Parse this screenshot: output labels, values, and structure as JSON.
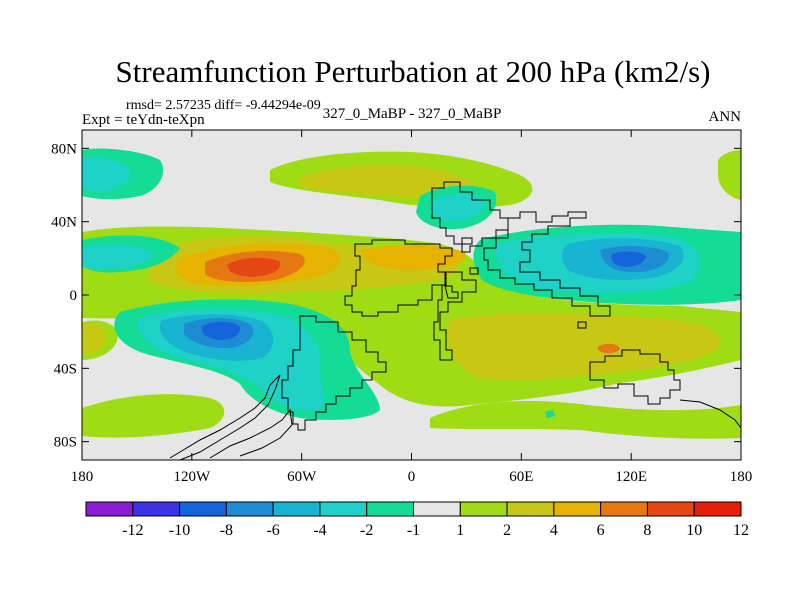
{
  "chart_data": {
    "type": "heatmap",
    "title": "Streamfunction Perturbation at 200 hPa (km2/s)",
    "stats_line": "rmsd= 2.57235 diff= -9.44294e-09",
    "left_label": "Expt = teYdn-teXpn",
    "center_label": "327_0_MaBP - 327_0_MaBP",
    "right_label": "ANN",
    "xlim": [
      -180,
      180
    ],
    "ylim": [
      -90,
      90
    ],
    "x_ticks": [
      {
        "value": -180,
        "label": "180"
      },
      {
        "value": -120,
        "label": "120W"
      },
      {
        "value": -60,
        "label": "60W"
      },
      {
        "value": 0,
        "label": "0"
      },
      {
        "value": 60,
        "label": "60E"
      },
      {
        "value": 120,
        "label": "120E"
      },
      {
        "value": 180,
        "label": "180"
      }
    ],
    "y_ticks": [
      {
        "value": 80,
        "label": "80N"
      },
      {
        "value": 40,
        "label": "40N"
      },
      {
        "value": 0,
        "label": "0"
      },
      {
        "value": -40,
        "label": "40S"
      },
      {
        "value": -80,
        "label": "80S"
      }
    ],
    "colorbar": {
      "levels": [
        "-12",
        "-10",
        "-8",
        "-6",
        "-4",
        "-2",
        "-1",
        "1",
        "2",
        "4",
        "6",
        "8",
        "10",
        "12"
      ],
      "colors": [
        "#8c1ed2",
        "#3c32e6",
        "#1464dc",
        "#1e8cd2",
        "#18b4d2",
        "#1ed2c8",
        "#12dc96",
        "#e6e6e6",
        "#a0dc14",
        "#c8c814",
        "#e6b400",
        "#e67814",
        "#e64614",
        "#e61e0a"
      ]
    },
    "features": [
      {
        "name": "high-core-west-pacific",
        "lon": -102,
        "lat": 18,
        "value": 9
      },
      {
        "name": "low-core-south-pacific",
        "lon": -108,
        "lat": -19,
        "value": -9
      },
      {
        "name": "low-core-asia",
        "lon": 120,
        "lat": 20,
        "value": -7
      },
      {
        "name": "low-core-north-pacific",
        "lon": -170,
        "lat": 60,
        "value": -4
      },
      {
        "name": "low-core-europe",
        "lon": 28,
        "lat": 48,
        "value": -4
      },
      {
        "name": "high-core-north-atlantic",
        "lon": -12,
        "lat": 8,
        "value": 4
      },
      {
        "name": "high-core-indian-ocean",
        "lon": 90,
        "lat": -25,
        "value": 4
      },
      {
        "name": "high-core-north-pac-arc",
        "lon": -60,
        "lat": 62,
        "value": 3
      }
    ]
  }
}
